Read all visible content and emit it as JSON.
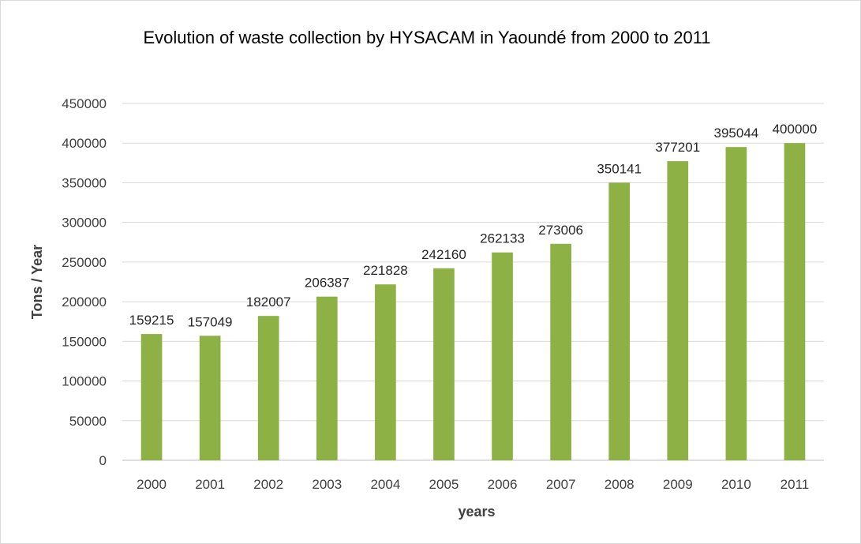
{
  "chart_data": {
    "type": "bar",
    "title": "Evolution of waste collection by HYSACAM in Yaoundé from 2000 to 2011",
    "xlabel": "years",
    "ylabel": "Tons / Year",
    "categories": [
      "2000",
      "2001",
      "2002",
      "2003",
      "2004",
      "2005",
      "2006",
      "2007",
      "2008",
      "2009",
      "2010",
      "2011"
    ],
    "values": [
      159215,
      157049,
      182007,
      206387,
      221828,
      242160,
      262133,
      273006,
      350141,
      377201,
      395044,
      400000
    ],
    "data_labels": [
      "159215",
      "157049",
      "182007",
      "206387",
      "221828",
      "242160",
      "262133",
      "273006",
      "350141",
      "377201",
      "395044",
      "400000"
    ],
    "ylim": [
      0,
      450000
    ],
    "yticks": [
      0,
      50000,
      100000,
      150000,
      200000,
      250000,
      300000,
      350000,
      400000,
      450000
    ],
    "ytick_labels": [
      "0",
      "50000",
      "100000",
      "150000",
      "200000",
      "250000",
      "300000",
      "350000",
      "400000",
      "450000"
    ],
    "grid": true,
    "colors": {
      "bar": "#8db145",
      "grid": "#d9d9d9",
      "axis": "#bfbfbf"
    }
  }
}
